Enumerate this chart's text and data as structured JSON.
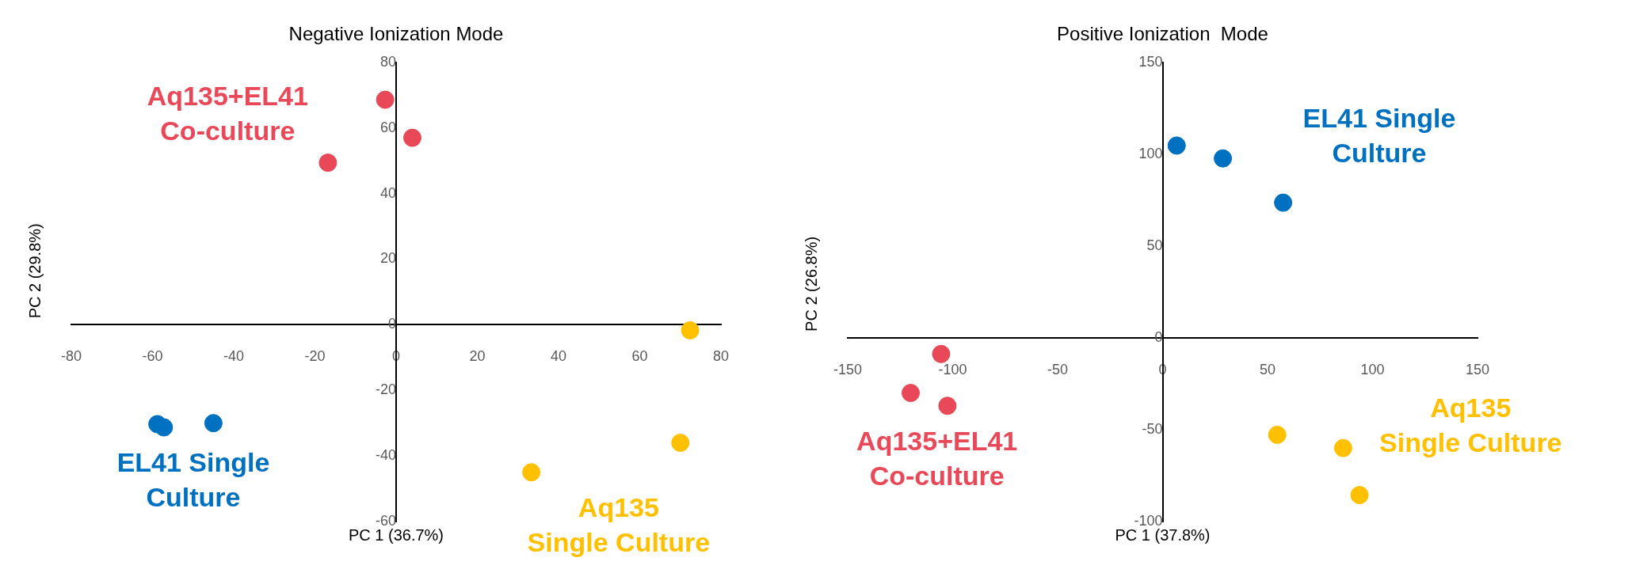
{
  "chart_data": [
    {
      "type": "scatter",
      "title": "Negative Ionization Mode",
      "xlabel": "PC 1 (36.7%)",
      "ylabel": "PC 2 (29.8%)",
      "xlim": [
        -80,
        80
      ],
      "xticks": [
        -80,
        -60,
        -40,
        -20,
        0,
        20,
        40,
        60,
        80
      ],
      "ylim": [
        -60,
        80
      ],
      "yticks": [
        -60,
        -40,
        -20,
        0,
        20,
        40,
        60,
        80
      ],
      "grid": false,
      "legend": false,
      "marker": "circle",
      "series": [
        {
          "color": "#e84858",
          "x": [
            -2.7,
            4,
            -16.8
          ],
          "values": [
            68.6,
            57,
            49.4
          ]
        },
        {
          "color": "#0070c0",
          "x": [
            -58.8,
            -57.2,
            -45
          ],
          "values": [
            -30.3,
            -31.3,
            -30
          ]
        },
        {
          "color": "#ffc000",
          "x": [
            72.4,
            70,
            33.3
          ],
          "values": [
            -1.7,
            -36,
            -45
          ]
        }
      ],
      "annotations": [
        "Aq135+EL41\nCo-culture",
        "EL41 Single\nCulture",
        "Aq135\nSingle Culture"
      ]
    },
    {
      "type": "scatter",
      "title": "Positive Ionization  Mode",
      "xlabel": "PC 1 (37.8%)",
      "ylabel": "PC 2 (26.8%)",
      "xlim": [
        -150,
        150
      ],
      "xticks": [
        -150,
        -100,
        -50,
        0,
        50,
        100,
        150
      ],
      "ylim": [
        -100,
        150
      ],
      "yticks": [
        -100,
        -50,
        0,
        50,
        100,
        150
      ],
      "grid": false,
      "legend": false,
      "marker": "circle",
      "series": [
        {
          "color": "#e84858",
          "x": [
            -105.5,
            -120,
            -102.5
          ],
          "values": [
            -8.8,
            -30,
            -37
          ]
        },
        {
          "color": "#0070c0",
          "x": [
            6.7,
            28.7,
            57.4
          ],
          "values": [
            104.7,
            97.7,
            73.6
          ]
        },
        {
          "color": "#ffc000",
          "x": [
            54.6,
            86,
            93.8
          ],
          "values": [
            -52.8,
            -60,
            -85.6
          ]
        }
      ],
      "annotations": [
        "Aq135+EL41\nCo-culture",
        "EL41 Single\nCulture",
        "Aq135\nSingle Culture"
      ]
    }
  ]
}
